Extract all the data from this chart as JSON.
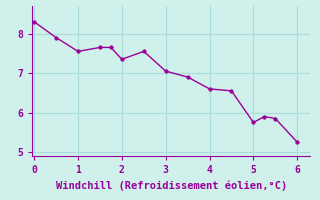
{
  "x": [
    0,
    0.5,
    1.0,
    1.5,
    1.75,
    2.0,
    2.5,
    3.0,
    3.5,
    4.0,
    4.5,
    5.0,
    5.25,
    5.5,
    6.0
  ],
  "y": [
    8.3,
    7.9,
    7.55,
    7.65,
    7.65,
    7.35,
    7.55,
    7.05,
    6.9,
    6.6,
    6.55,
    5.75,
    5.9,
    5.85,
    5.25
  ],
  "line_color": "#990099",
  "marker_color": "#990099",
  "bg_color": "#cff0eb",
  "grid_color": "#aaddda",
  "axis_color": "#990099",
  "tick_color": "#990099",
  "xlabel": "Windchill (Refroidissement éolien,°C)",
  "xlabel_color": "#990099",
  "xlim": [
    -0.05,
    6.3
  ],
  "ylim": [
    4.9,
    8.7
  ],
  "yticks": [
    5,
    6,
    7,
    8
  ],
  "xticks": [
    0,
    1,
    2,
    3,
    4,
    5,
    6
  ],
  "font_family": "monospace",
  "xlabel_fontsize": 7.5,
  "tick_fontsize": 7,
  "linewidth": 1.0,
  "markersize": 2.5
}
